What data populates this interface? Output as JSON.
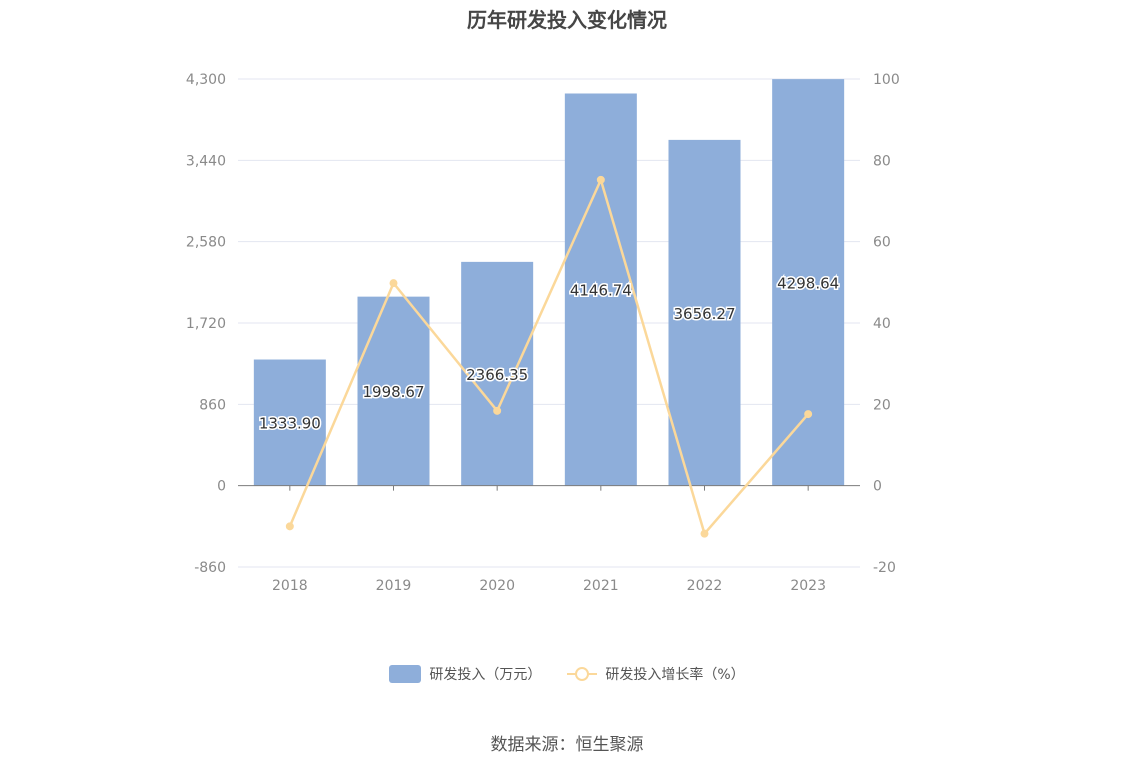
{
  "chart_data": {
    "type": "bar",
    "title": "历年研发投入变化情况",
    "categories": [
      "2018",
      "2019",
      "2020",
      "2021",
      "2022",
      "2023"
    ],
    "series": [
      {
        "name": "研发投入（万元）",
        "type": "bar",
        "axis": "left",
        "values": [
          1333.9,
          1998.67,
          2366.35,
          4146.74,
          3656.27,
          4298.64
        ],
        "labels": [
          "1333.90",
          "1998.67",
          "2366.35",
          "4146.74",
          "3656.27",
          "4298.64"
        ],
        "color": "#8eaeda"
      },
      {
        "name": "研发投入增长率（%）",
        "type": "line",
        "axis": "right",
        "values": [
          -10.0,
          49.8,
          18.4,
          75.2,
          -11.8,
          17.6
        ],
        "color": "#fbd89a"
      }
    ],
    "y_left": {
      "ylim": [
        -860,
        4300
      ],
      "ticks": [
        "4,300",
        "3,440",
        "2,580",
        "1,720",
        "860",
        "0",
        "-860"
      ]
    },
    "y_right": {
      "ylim": [
        -20,
        100
      ],
      "ticks": [
        "100",
        "80",
        "60",
        "40",
        "20",
        "0",
        "-20"
      ]
    },
    "grid": true,
    "legend_position": "bottom-center"
  },
  "footer": {
    "source": "数据来源：恒生聚源"
  }
}
